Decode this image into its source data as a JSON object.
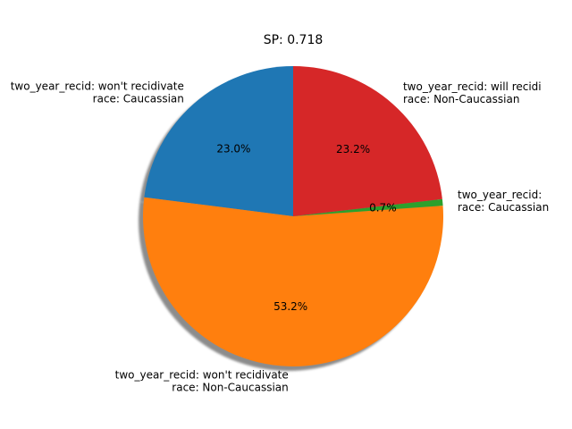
{
  "chart_data": {
    "type": "pie",
    "title": "SP: 0.718",
    "slices": [
      {
        "label_lines": [
          "two_year_recid: won't recidivate",
          "race: Caucassian"
        ],
        "value": 23.0,
        "pct_label": "23.0%",
        "color": "#1f77b4"
      },
      {
        "label_lines": [
          "two_year_recid: won't recidivate",
          "race: Non-Caucassian"
        ],
        "value": 53.2,
        "pct_label": "53.2%",
        "color": "#ff7f0e"
      },
      {
        "label_lines": [
          "two_year_recid:",
          "race: Caucassian"
        ],
        "value": 0.7,
        "pct_label": "0.7%",
        "color": "#2ca02c"
      },
      {
        "label_lines": [
          "two_year_recid: will recidi",
          "race: Non-Caucassian"
        ],
        "value": 23.2,
        "pct_label": "23.2%",
        "color": "#d62728"
      }
    ],
    "start_angle": "top",
    "direction": "counterclockwise",
    "shadow": true
  }
}
